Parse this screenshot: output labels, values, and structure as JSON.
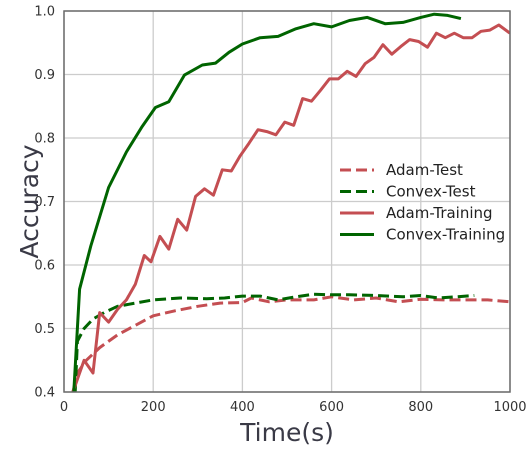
{
  "chart_data": {
    "type": "line",
    "title": "",
    "xlabel": "Time(s)",
    "ylabel": "Accuracy",
    "xlim": [
      0,
      1000
    ],
    "ylim": [
      0.4,
      1.0
    ],
    "xticks": [
      "0",
      "200",
      "400",
      "600",
      "800",
      "1000"
    ],
    "yticks": [
      "0.4",
      "0.5",
      "0.6",
      "0.7",
      "0.8",
      "0.9",
      "1.0"
    ],
    "grid": true,
    "legend_position": "center-right",
    "series": [
      {
        "name": "Adam-Test",
        "color": "#c44e52",
        "style": "dashed",
        "points": [
          [
            20,
            0.4
          ],
          [
            30,
            0.43
          ],
          [
            50,
            0.45
          ],
          [
            80,
            0.47
          ],
          [
            120,
            0.49
          ],
          [
            160,
            0.505
          ],
          [
            200,
            0.52
          ],
          [
            250,
            0.528
          ],
          [
            300,
            0.535
          ],
          [
            350,
            0.54
          ],
          [
            400,
            0.541
          ],
          [
            420,
            0.548
          ],
          [
            460,
            0.542
          ],
          [
            500,
            0.545
          ],
          [
            560,
            0.545
          ],
          [
            600,
            0.55
          ],
          [
            650,
            0.545
          ],
          [
            700,
            0.548
          ],
          [
            750,
            0.542
          ],
          [
            800,
            0.546
          ],
          [
            850,
            0.545
          ],
          [
            900,
            0.545
          ],
          [
            950,
            0.545
          ],
          [
            1000,
            0.542
          ]
        ]
      },
      {
        "name": "Convex-Test",
        "color": "#006400",
        "style": "dashed",
        "points": [
          [
            25,
            0.4
          ],
          [
            30,
            0.48
          ],
          [
            45,
            0.5
          ],
          [
            65,
            0.515
          ],
          [
            90,
            0.525
          ],
          [
            120,
            0.535
          ],
          [
            160,
            0.54
          ],
          [
            200,
            0.545
          ],
          [
            260,
            0.548
          ],
          [
            320,
            0.547
          ],
          [
            360,
            0.548
          ],
          [
            400,
            0.551
          ],
          [
            440,
            0.551
          ],
          [
            480,
            0.545
          ],
          [
            520,
            0.55
          ],
          [
            560,
            0.554
          ],
          [
            600,
            0.553
          ],
          [
            640,
            0.553
          ],
          [
            700,
            0.552
          ],
          [
            760,
            0.55
          ],
          [
            800,
            0.552
          ],
          [
            840,
            0.548
          ],
          [
            880,
            0.55
          ],
          [
            920,
            0.552
          ]
        ]
      },
      {
        "name": "Adam-Training",
        "color": "#c44e52",
        "style": "solid",
        "points": [
          [
            20,
            0.4
          ],
          [
            30,
            0.42
          ],
          [
            45,
            0.45
          ],
          [
            65,
            0.43
          ],
          [
            80,
            0.525
          ],
          [
            100,
            0.51
          ],
          [
            120,
            0.53
          ],
          [
            140,
            0.545
          ],
          [
            160,
            0.57
          ],
          [
            180,
            0.615
          ],
          [
            195,
            0.605
          ],
          [
            215,
            0.645
          ],
          [
            235,
            0.625
          ],
          [
            255,
            0.672
          ],
          [
            275,
            0.655
          ],
          [
            295,
            0.708
          ],
          [
            315,
            0.72
          ],
          [
            335,
            0.71
          ],
          [
            355,
            0.75
          ],
          [
            375,
            0.748
          ],
          [
            395,
            0.772
          ],
          [
            415,
            0.792
          ],
          [
            435,
            0.813
          ],
          [
            455,
            0.81
          ],
          [
            475,
            0.805
          ],
          [
            495,
            0.825
          ],
          [
            515,
            0.82
          ],
          [
            535,
            0.862
          ],
          [
            555,
            0.858
          ],
          [
            575,
            0.875
          ],
          [
            595,
            0.893
          ],
          [
            615,
            0.893
          ],
          [
            635,
            0.905
          ],
          [
            655,
            0.897
          ],
          [
            675,
            0.917
          ],
          [
            695,
            0.927
          ],
          [
            715,
            0.947
          ],
          [
            735,
            0.932
          ],
          [
            755,
            0.944
          ],
          [
            775,
            0.955
          ],
          [
            795,
            0.952
          ],
          [
            815,
            0.943
          ],
          [
            835,
            0.965
          ],
          [
            855,
            0.958
          ],
          [
            875,
            0.965
          ],
          [
            895,
            0.958
          ],
          [
            915,
            0.958
          ],
          [
            935,
            0.968
          ],
          [
            955,
            0.97
          ],
          [
            975,
            0.978
          ],
          [
            1000,
            0.965
          ]
        ]
      },
      {
        "name": "Convex-Training",
        "color": "#006400",
        "style": "solid",
        "points": [
          [
            22,
            0.4
          ],
          [
            35,
            0.562
          ],
          [
            60,
            0.63
          ],
          [
            100,
            0.722
          ],
          [
            140,
            0.778
          ],
          [
            175,
            0.818
          ],
          [
            205,
            0.848
          ],
          [
            235,
            0.857
          ],
          [
            270,
            0.899
          ],
          [
            310,
            0.915
          ],
          [
            340,
            0.918
          ],
          [
            370,
            0.935
          ],
          [
            400,
            0.948
          ],
          [
            440,
            0.958
          ],
          [
            480,
            0.96
          ],
          [
            520,
            0.972
          ],
          [
            560,
            0.98
          ],
          [
            600,
            0.975
          ],
          [
            640,
            0.985
          ],
          [
            680,
            0.99
          ],
          [
            720,
            0.98
          ],
          [
            760,
            0.982
          ],
          [
            800,
            0.99
          ],
          [
            830,
            0.995
          ],
          [
            860,
            0.993
          ],
          [
            890,
            0.988
          ]
        ]
      }
    ]
  }
}
